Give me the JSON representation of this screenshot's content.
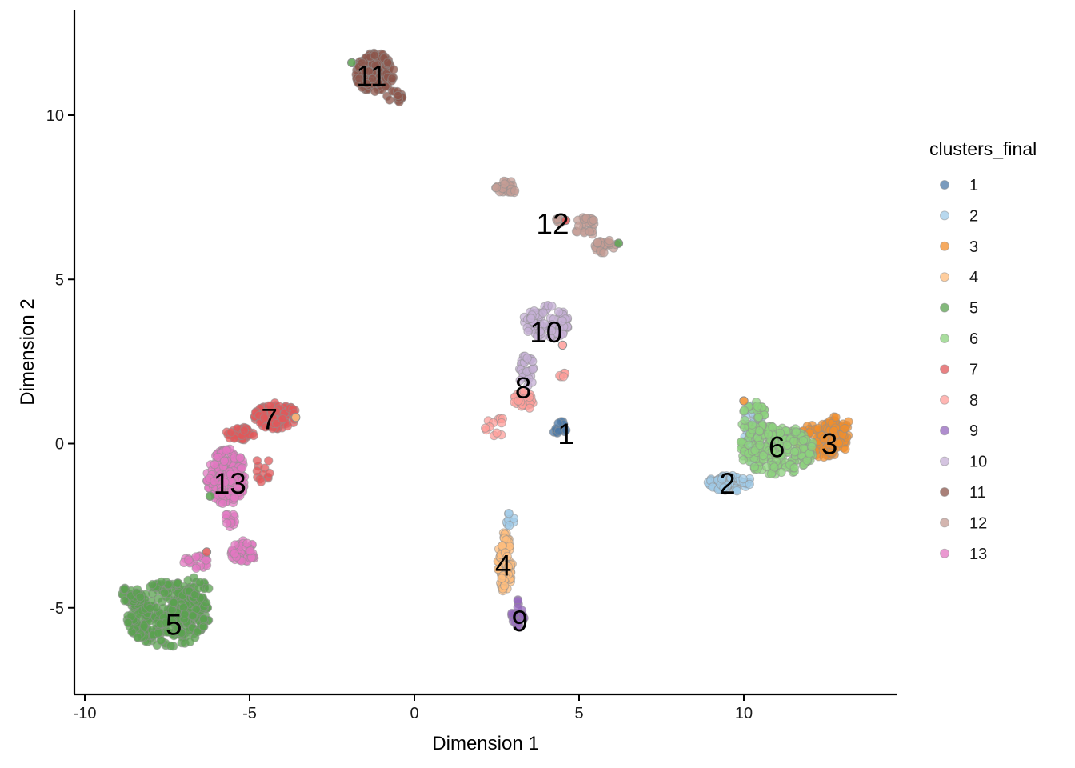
{
  "chart_data": {
    "type": "scatter",
    "xlabel": "Dimension 1",
    "ylabel": "Dimension 2",
    "xlim": [
      -10.3,
      14.7
    ],
    "ylim": [
      -7.6,
      13.2
    ],
    "x_ticks": [
      -10,
      -5,
      0,
      5,
      10
    ],
    "x_tick_labels": [
      "-10",
      "-5",
      "0",
      "5",
      "10"
    ],
    "y_ticks": [
      -5,
      0,
      5,
      10
    ],
    "y_tick_labels": [
      "-5",
      "0",
      "5",
      "10"
    ],
    "grid": false,
    "legend": {
      "title": "clusters_final",
      "placement": "right",
      "entries": [
        "1",
        "2",
        "3",
        "4",
        "5",
        "6",
        "7",
        "8",
        "9",
        "10",
        "11",
        "12",
        "13"
      ]
    },
    "colors": {
      "1": "#4e79a7",
      "2": "#a0cbe8",
      "3": "#f28e2b",
      "4": "#ffbe7d",
      "5": "#59a14f",
      "6": "#8cd17d",
      "7": "#e15759",
      "8": "#ff9d9a",
      "9": "#9467bd",
      "10": "#c5b0d5",
      "11": "#8c564b",
      "12": "#c49c94",
      "13": "#e377c2"
    },
    "series": [
      {
        "name": "1",
        "regions": [
          [
            4.4,
            0.5,
            0.25,
            0.2,
            14
          ]
        ]
      },
      {
        "name": "2",
        "regions": [
          [
            9.6,
            -1.2,
            0.7,
            0.25,
            60
          ],
          [
            10.3,
            0.3,
            0.3,
            0.9,
            40
          ],
          [
            2.9,
            -2.3,
            0.15,
            0.2,
            8
          ]
        ]
      },
      {
        "name": "3",
        "regions": [
          [
            12.4,
            0.1,
            0.8,
            0.55,
            110
          ],
          [
            12.9,
            0.55,
            0.35,
            0.3,
            30
          ]
        ]
      },
      {
        "name": "4",
        "regions": [
          [
            2.75,
            -3.6,
            0.22,
            0.95,
            80
          ]
        ]
      },
      {
        "name": "5",
        "regions": [
          [
            -7.5,
            -5.2,
            1.3,
            1.0,
            340
          ],
          [
            -8.6,
            -4.6,
            0.35,
            0.25,
            30
          ],
          [
            -6.6,
            -4.4,
            0.4,
            0.35,
            25
          ]
        ]
      },
      {
        "name": "6",
        "regions": [
          [
            11.0,
            -0.2,
            1.15,
            0.75,
            220
          ],
          [
            10.3,
            0.8,
            0.4,
            0.5,
            35
          ]
        ]
      },
      {
        "name": "7",
        "regions": [
          [
            -4.2,
            0.85,
            0.65,
            0.4,
            110
          ],
          [
            -5.3,
            0.3,
            0.45,
            0.2,
            40
          ],
          [
            -4.6,
            -0.8,
            0.25,
            0.4,
            12
          ]
        ]
      },
      {
        "name": "8",
        "regions": [
          [
            3.3,
            1.3,
            0.3,
            0.3,
            30
          ],
          [
            2.5,
            0.5,
            0.35,
            0.3,
            12
          ],
          [
            4.5,
            2.1,
            0.1,
            0.1,
            5
          ]
        ]
      },
      {
        "name": "9",
        "regions": [
          [
            3.15,
            -5.2,
            0.2,
            0.45,
            24
          ]
        ]
      },
      {
        "name": "10",
        "regions": [
          [
            4.0,
            3.7,
            0.7,
            0.55,
            100
          ],
          [
            3.4,
            2.2,
            0.25,
            0.5,
            30
          ]
        ]
      },
      {
        "name": "11",
        "regions": [
          [
            -1.2,
            11.3,
            0.6,
            0.6,
            160
          ],
          [
            -0.6,
            10.5,
            0.25,
            0.25,
            15
          ]
        ]
      },
      {
        "name": "12",
        "regions": [
          [
            2.8,
            7.8,
            0.35,
            0.2,
            30
          ],
          [
            5.2,
            6.6,
            0.35,
            0.3,
            25
          ],
          [
            5.8,
            6.0,
            0.35,
            0.2,
            25
          ],
          [
            4.4,
            6.8,
            0.15,
            0.1,
            6
          ]
        ]
      },
      {
        "name": "13",
        "regions": [
          [
            -5.7,
            -1.0,
            0.6,
            0.85,
            160
          ],
          [
            -5.2,
            -3.3,
            0.4,
            0.35,
            45
          ],
          [
            -6.6,
            -3.6,
            0.4,
            0.2,
            20
          ],
          [
            -5.6,
            -2.4,
            0.2,
            0.3,
            12
          ]
        ]
      }
    ],
    "accent_points": [
      {
        "cluster": "5",
        "x": -1.9,
        "y": 11.6
      },
      {
        "cluster": "5",
        "x": 6.2,
        "y": 6.1
      },
      {
        "cluster": "5",
        "x": -6.2,
        "y": -1.6
      },
      {
        "cluster": "7",
        "x": -6.3,
        "y": -3.3
      },
      {
        "cluster": "7",
        "x": 4.6,
        "y": 6.8
      },
      {
        "cluster": "8",
        "x": 4.5,
        "y": 3.0
      },
      {
        "cluster": "4",
        "x": -3.6,
        "y": 0.8
      },
      {
        "cluster": "3",
        "x": 10.0,
        "y": 1.3
      }
    ],
    "cluster_labels": [
      {
        "text": "1",
        "x": 4.6,
        "y": 0.3
      },
      {
        "text": "2",
        "x": 9.5,
        "y": -1.2
      },
      {
        "text": "3",
        "x": 12.6,
        "y": 0.0
      },
      {
        "text": "4",
        "x": 2.7,
        "y": -3.7
      },
      {
        "text": "5",
        "x": -7.3,
        "y": -5.5
      },
      {
        "text": "6",
        "x": 11.0,
        "y": -0.1
      },
      {
        "text": "7",
        "x": -4.4,
        "y": 0.75
      },
      {
        "text": "8",
        "x": 3.3,
        "y": 1.7
      },
      {
        "text": "9",
        "x": 3.2,
        "y": -5.4
      },
      {
        "text": "10",
        "x": 4.0,
        "y": 3.4
      },
      {
        "text": "11",
        "x": -1.3,
        "y": 11.2
      },
      {
        "text": "12",
        "x": 4.2,
        "y": 6.7
      },
      {
        "text": "13",
        "x": -5.6,
        "y": -1.2
      }
    ]
  }
}
